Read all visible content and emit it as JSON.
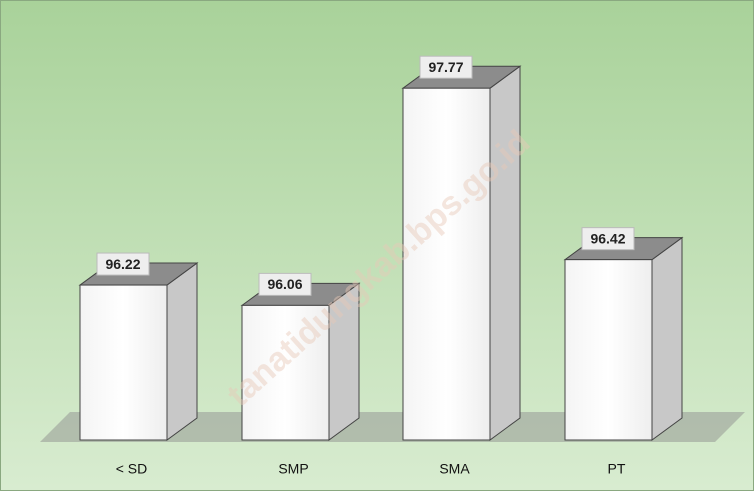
{
  "chart_data": {
    "type": "bar3d",
    "categories": [
      "< SD",
      "SMP",
      "SMA",
      "PT"
    ],
    "values": [
      96.22,
      96.06,
      97.77,
      96.42
    ],
    "ylim": [
      95,
      98
    ],
    "color": "#ffffff",
    "watermark": "tanatidungkab.bps.go.id"
  }
}
